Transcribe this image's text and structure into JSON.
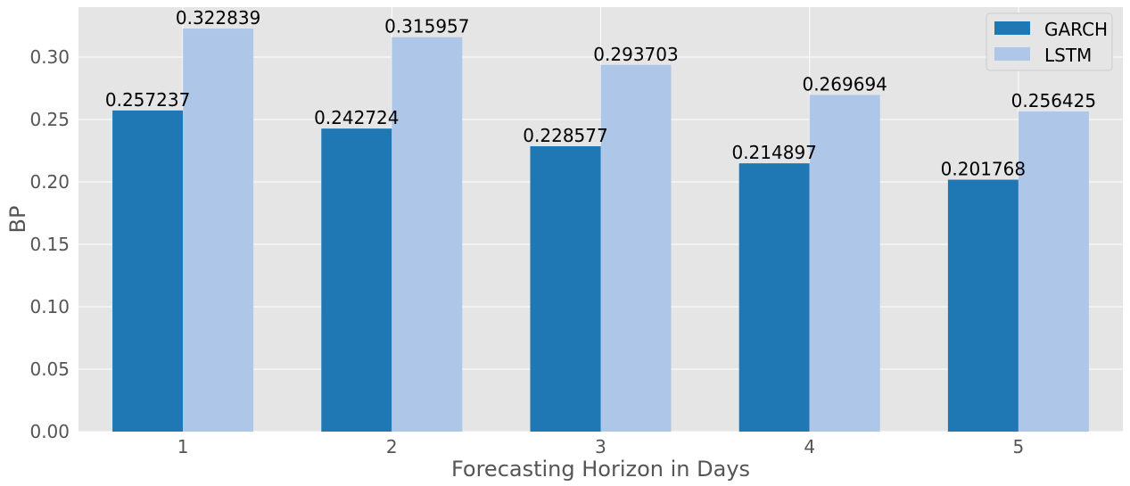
{
  "chart_data": {
    "type": "bar",
    "categories": [
      "1",
      "2",
      "3",
      "4",
      "5"
    ],
    "series": [
      {
        "name": "GARCH",
        "color": "#1f77b4",
        "values": [
          0.257237,
          0.242724,
          0.228577,
          0.214897,
          0.201768
        ],
        "labels": [
          "0.257237",
          "0.242724",
          "0.228577",
          "0.214897",
          "0.201768"
        ]
      },
      {
        "name": "LSTM",
        "color": "#aec7e8",
        "values": [
          0.322839,
          0.315957,
          0.293703,
          0.269694,
          0.256425
        ],
        "labels": [
          "0.322839",
          "0.315957",
          "0.293703",
          "0.269694",
          "0.256425"
        ]
      }
    ],
    "xlabel": "Forecasting Horizon in Days",
    "ylabel": "BP",
    "ylim": [
      0,
      0.34
    ],
    "yticks": [
      0.0,
      0.05,
      0.1,
      0.15,
      0.2,
      0.25,
      0.3
    ],
    "ytick_labels": [
      "0.00",
      "0.05",
      "0.10",
      "0.15",
      "0.20",
      "0.25",
      "0.30"
    ],
    "grid": true,
    "legend_position": "top-right",
    "plot_background": "#e5e5e5",
    "grid_color": "#ffffff"
  }
}
